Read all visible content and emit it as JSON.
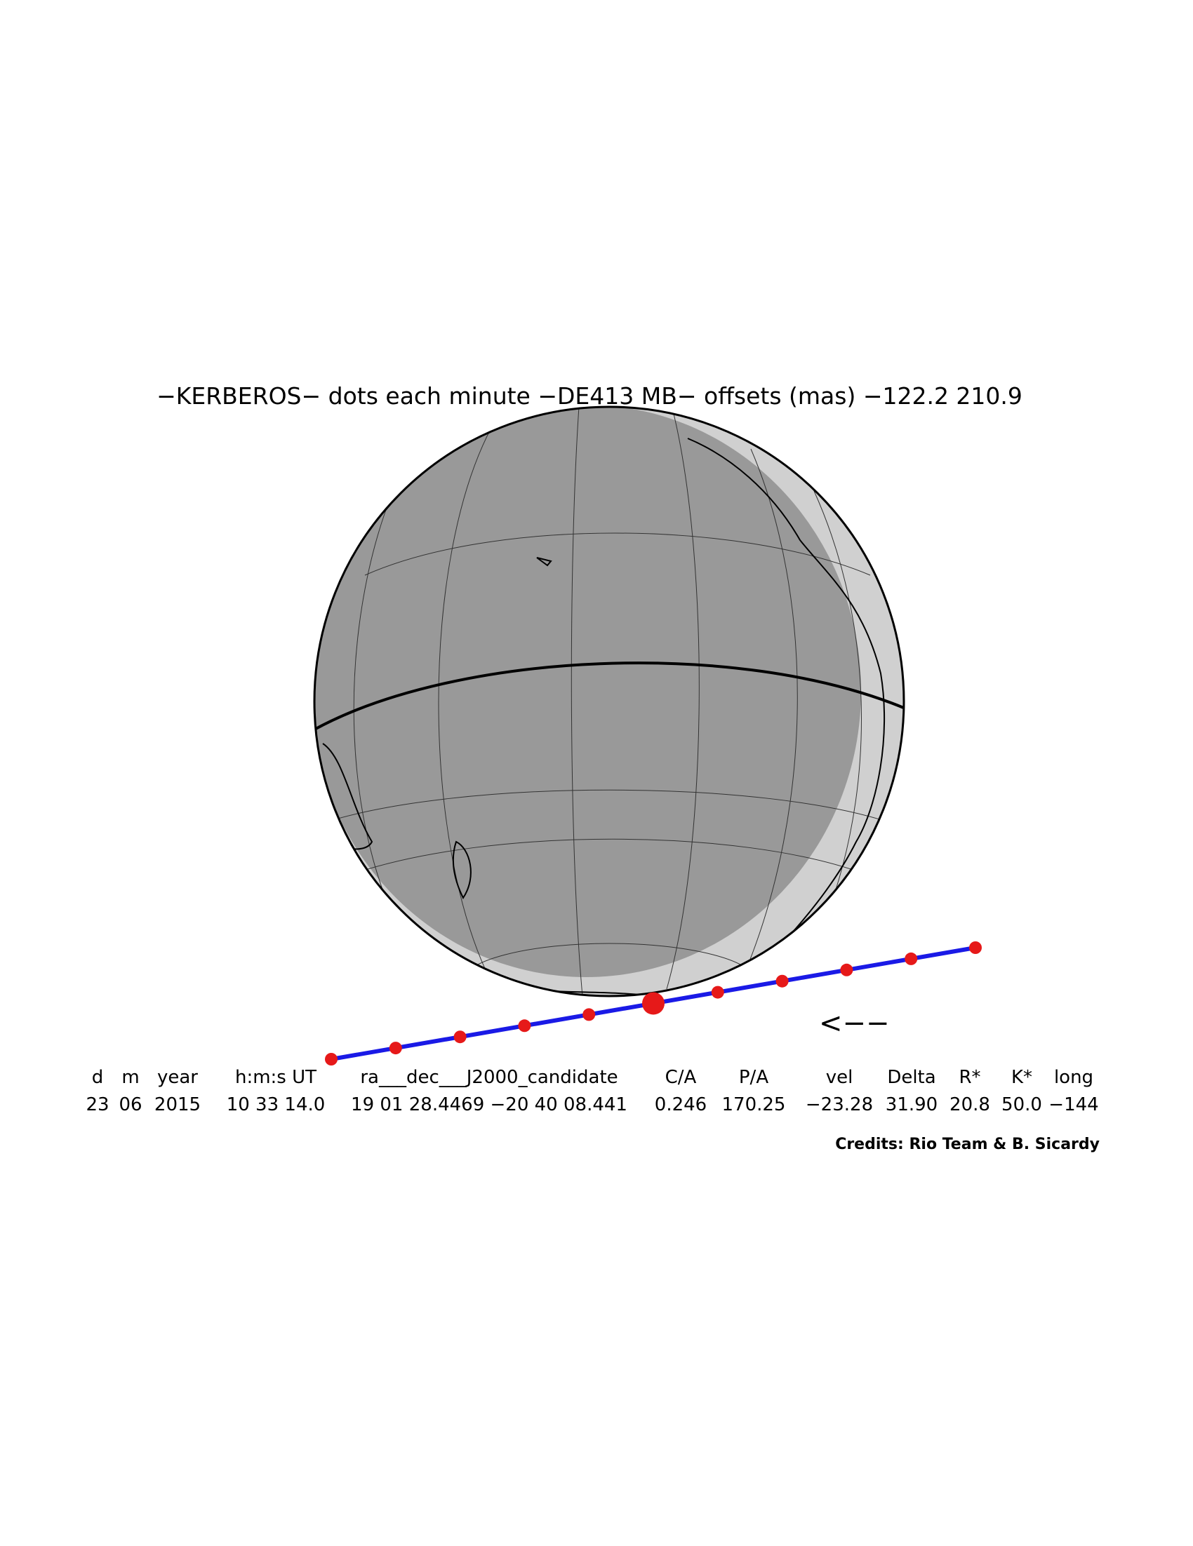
{
  "header": {
    "title": "−KERBEROS− dots each minute −DE413 MB− offsets (mas) −122.2  210.9"
  },
  "map": {
    "direction_label": "<−−"
  },
  "table": {
    "columns": [
      "d",
      "m",
      "year",
      "h:m:s UT",
      "ra___dec___J2000_candidate",
      "C/A",
      "P/A",
      "vel",
      "Delta",
      "R*",
      "K*",
      "long"
    ],
    "rows": [
      [
        "23",
        "06",
        "2015",
        "10 33 14.0",
        "19 01 28.4469 −20 40 08.441",
        "0.246",
        "170.25",
        "−23.28",
        "31.90",
        "20.8",
        "50.0",
        "−144"
      ]
    ]
  },
  "footer": {
    "credits": "Credits: Rio Team & B. Sicardy"
  }
}
